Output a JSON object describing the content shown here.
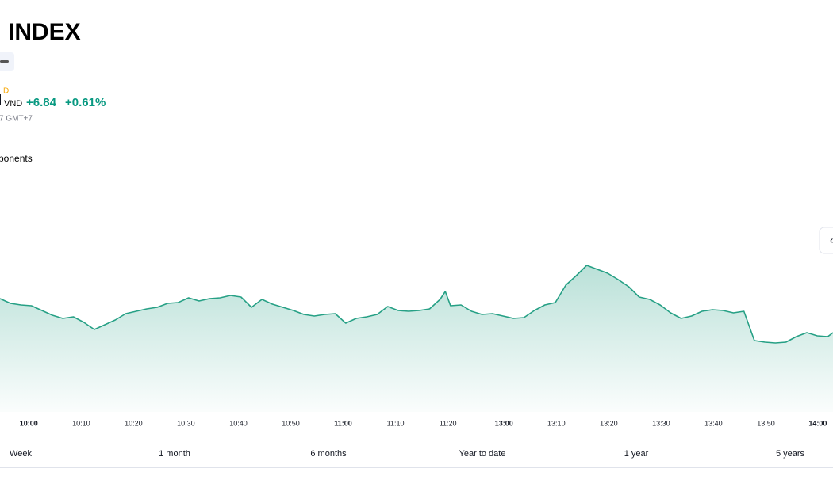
{
  "header": {
    "title": "INDEX",
    "currency_tag": "D",
    "currency": "VND",
    "change": "+6.84",
    "change_percent": "+0.61%",
    "timestamp": "7 GMT+7"
  },
  "tab": "ponents",
  "range_buttons": [
    "Week",
    "1 month",
    "6 months",
    "Year to date",
    "1 year",
    "5 years"
  ],
  "chart_data": {
    "type": "line",
    "x": [
      0,
      2,
      4,
      6,
      8,
      10,
      12,
      14,
      16,
      18,
      20,
      22,
      24,
      26,
      28,
      30,
      32,
      34,
      36,
      38,
      40,
      42,
      44,
      46,
      48,
      50,
      52,
      54,
      56,
      58,
      60,
      62,
      64,
      66,
      68,
      70,
      72,
      74,
      76,
      78,
      80,
      82,
      84,
      85,
      86,
      88,
      90,
      92,
      94,
      96,
      98,
      100,
      102,
      104,
      106,
      108,
      110,
      112,
      114,
      116,
      118,
      120,
      122,
      124,
      126,
      128,
      130,
      132,
      134,
      136,
      138,
      140,
      142,
      144,
      146,
      148,
      150,
      152,
      154,
      156,
      158,
      159
    ],
    "series": [
      {
        "color": "#26a085",
        "values": [
          143,
          137,
          135,
          134,
          128,
          122,
          118,
          120,
          113,
          104,
          110,
          116,
          124,
          127,
          130,
          132,
          137,
          138,
          144,
          140,
          143,
          144,
          147,
          145,
          132,
          142,
          136,
          132,
          128,
          123,
          121,
          123,
          124,
          112,
          118,
          120,
          123,
          133,
          128,
          127,
          128,
          130,
          142,
          152,
          134,
          135,
          127,
          123,
          124,
          121,
          118,
          119,
          128,
          135,
          138,
          160,
          172,
          185,
          180,
          175,
          167,
          158,
          145,
          142,
          135,
          125,
          118,
          121,
          127,
          129,
          128,
          125,
          127,
          90,
          88,
          87,
          88,
          95,
          100,
          96,
          95,
          100
        ]
      }
    ],
    "xlim": [
      0,
      159
    ],
    "ylim": [
      0,
      300
    ],
    "xticks": [
      {
        "value": 5.5,
        "label": "10:00"
      },
      {
        "value": 15.5,
        "label": "10:10"
      },
      {
        "value": 25.5,
        "label": "10:20"
      },
      {
        "value": 35.5,
        "label": "10:30"
      },
      {
        "value": 45.5,
        "label": "10:40"
      },
      {
        "value": 55.5,
        "label": "10:50"
      },
      {
        "value": 65.5,
        "label": "11:00"
      },
      {
        "value": 75.5,
        "label": "11:10"
      },
      {
        "value": 85.5,
        "label": "11:20"
      },
      {
        "value": 96.2,
        "label": "13:00"
      },
      {
        "value": 106.2,
        "label": "13:10"
      },
      {
        "value": 116.2,
        "label": "13:20"
      },
      {
        "value": 126.2,
        "label": "13:30"
      },
      {
        "value": 136.2,
        "label": "13:40"
      },
      {
        "value": 146.2,
        "label": "13:50"
      },
      {
        "value": 156.1,
        "label": "14:00"
      }
    ]
  }
}
